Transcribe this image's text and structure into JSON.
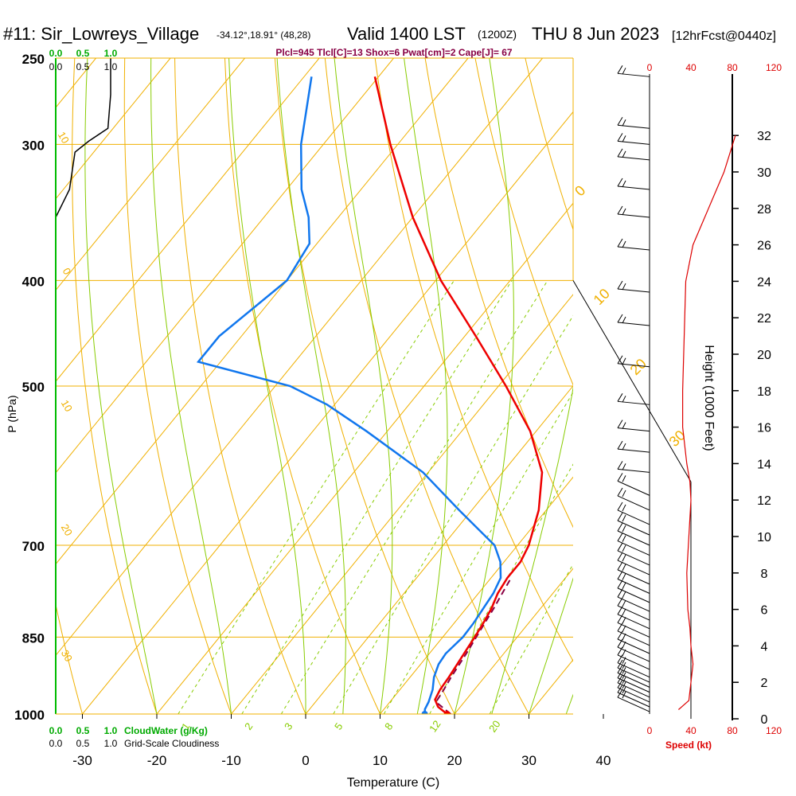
{
  "header": {
    "station": "#11: Sir_Lowreys_Village",
    "coords": "-34.12°,18.91° (48,28)",
    "valid": "Valid 1400 LST",
    "utc": "(1200Z)",
    "date": "THU 8 Jun 2023",
    "forecast": "[12hrFcst@0440z]"
  },
  "indices": "Plcl=945 Tlcl[C]=13 Shox=6 Pwat[cm]=2 Cape[J]= 67",
  "colors": {
    "isobar": "#f0b000",
    "dry_adiabat": "#f0b000",
    "moist_adiabat": "#88cc00",
    "mixing_ratio": "#88cc00",
    "temperature": "#ee0000",
    "dewpoint": "#1177ee",
    "parcel": "#880044",
    "cloud": "#00aa00",
    "wind_speed": "#dd0000",
    "label_text": "#880044"
  },
  "chart_data": {
    "type": "line",
    "title": "Skew-T Log-P sounding",
    "xlabel": "Temperature (C)",
    "ylabel": "P (hPa)",
    "right_ylabel": "Height (1000 Feet)",
    "x_ticks": [
      -30,
      -20,
      -10,
      0,
      10,
      20,
      30,
      40
    ],
    "p_ticks": [
      250,
      300,
      400,
      500,
      700,
      850,
      1000
    ],
    "p_tick_labels": [
      "250",
      "300",
      "400",
      "500",
      "700",
      "850",
      "1000"
    ],
    "height_ticks": [
      0,
      2,
      4,
      6,
      8,
      10,
      12,
      14,
      16,
      18,
      20,
      22,
      24,
      26,
      28,
      30,
      32
    ],
    "height_tick_labels": [
      "0",
      "2",
      "4",
      "6",
      "8",
      "10",
      "12",
      "14",
      "16",
      "18",
      "20",
      "22",
      "24",
      "26",
      "28",
      "30",
      "32"
    ],
    "dry_adiabat_labels": [
      "0",
      "10",
      "20",
      "30"
    ],
    "mixing_ratio_labels": [
      "1",
      "2",
      "3",
      "5",
      "8",
      "12",
      "20"
    ],
    "theta_e_side_labels": [
      "10",
      "0",
      "10",
      "20",
      "30"
    ],
    "series": [
      {
        "name": "Temperature",
        "pressure": [
          1000,
          985,
          970,
          950,
          925,
          900,
          875,
          850,
          825,
          800,
          775,
          750,
          725,
          700,
          650,
          600,
          550,
          500,
          450,
          400,
          350,
          300,
          260
        ],
        "temperature": [
          19.0,
          17.0,
          15.8,
          15.4,
          15.2,
          14.9,
          14.6,
          14.3,
          13.9,
          13.4,
          12.6,
          12.2,
          12.2,
          11.5,
          9.0,
          5.3,
          -0.8,
          -9.0,
          -18.5,
          -29.3,
          -40.0,
          -51.0,
          -60.5
        ]
      },
      {
        "name": "Dewpoint",
        "pressure": [
          1000,
          990,
          975,
          950,
          925,
          900,
          880,
          850,
          825,
          800,
          775,
          750,
          725,
          700,
          650,
          600,
          550,
          520,
          500,
          475,
          450,
          400,
          370,
          350,
          330,
          300,
          260
        ],
        "dewpoint": [
          16.0,
          15.5,
          15.2,
          14.4,
          13.2,
          12.4,
          12.2,
          12.7,
          12.6,
          12.3,
          12.0,
          11.3,
          9.5,
          6.9,
          -1.7,
          -10.7,
          -22.8,
          -31.0,
          -38.0,
          -53.0,
          -53.0,
          -50.0,
          -51.0,
          -54.0,
          -58.0,
          -63.0,
          -69.0
        ]
      },
      {
        "name": "Parcel",
        "pressure": [
          1000,
          975,
          950,
          925,
          900,
          875,
          850,
          825,
          800,
          775,
          750
        ],
        "temperature": [
          19.5,
          16.2,
          15.9,
          15.5,
          15.2,
          14.9,
          14.5,
          14.1,
          13.7,
          13.2,
          12.7
        ]
      }
    ],
    "wind_speed_profile": {
      "name": "Speed (kt)",
      "height_kft": [
        0.5,
        1,
        2,
        3,
        4,
        5,
        6,
        8,
        10,
        12,
        13,
        14,
        16,
        18,
        20,
        22,
        24,
        26,
        28,
        30,
        32
      ],
      "speed_kt": [
        28,
        38,
        40,
        42,
        40,
        39,
        37,
        36,
        38,
        40,
        39,
        36,
        32,
        32,
        33,
        34,
        35,
        42,
        57,
        72,
        83
      ],
      "ticks": [
        0,
        40,
        80,
        120
      ],
      "tick_labels": [
        "0",
        "40",
        "80",
        "120"
      ]
    },
    "wind_barbs": [
      {
        "p": 995,
        "kt": 10
      },
      {
        "p": 985,
        "kt": 10
      },
      {
        "p": 975,
        "kt": 10
      },
      {
        "p": 965,
        "kt": 10
      },
      {
        "p": 955,
        "kt": 10
      },
      {
        "p": 945,
        "kt": 10
      },
      {
        "p": 935,
        "kt": 10
      },
      {
        "p": 925,
        "kt": 10
      },
      {
        "p": 910,
        "kt": 10
      },
      {
        "p": 895,
        "kt": 10
      },
      {
        "p": 880,
        "kt": 10
      },
      {
        "p": 865,
        "kt": 10
      },
      {
        "p": 850,
        "kt": 10
      },
      {
        "p": 835,
        "kt": 10
      },
      {
        "p": 820,
        "kt": 10
      },
      {
        "p": 805,
        "kt": 10
      },
      {
        "p": 790,
        "kt": 10
      },
      {
        "p": 775,
        "kt": 10
      },
      {
        "p": 760,
        "kt": 10
      },
      {
        "p": 745,
        "kt": 10
      },
      {
        "p": 730,
        "kt": 10
      },
      {
        "p": 715,
        "kt": 10
      },
      {
        "p": 700,
        "kt": 10
      },
      {
        "p": 685,
        "kt": 10
      },
      {
        "p": 670,
        "kt": 10
      },
      {
        "p": 650,
        "kt": 10
      },
      {
        "p": 630,
        "kt": 10
      },
      {
        "p": 600,
        "kt": 10
      },
      {
        "p": 575,
        "kt": 10
      },
      {
        "p": 550,
        "kt": 10
      },
      {
        "p": 520,
        "kt": 10
      },
      {
        "p": 480,
        "kt": 10
      },
      {
        "p": 440,
        "kt": 10
      },
      {
        "p": 410,
        "kt": 10
      },
      {
        "p": 375,
        "kt": 10
      },
      {
        "p": 350,
        "kt": 10
      },
      {
        "p": 330,
        "kt": 10
      },
      {
        "p": 310,
        "kt": 10
      },
      {
        "p": 300,
        "kt": 10
      },
      {
        "p": 290,
        "kt": 10
      },
      {
        "p": 260,
        "kt": 10
      }
    ],
    "cloud_water": {
      "label": "CloudWater (g/Kg)",
      "ticks": [
        "0.0",
        "0.5",
        "1.0"
      ],
      "pressure": [
        250,
        270,
        290,
        298,
        305,
        330,
        350
      ],
      "value": [
        1.0,
        1.0,
        0.95,
        0.6,
        0.35,
        0.25,
        0.0
      ]
    },
    "cloudiness": {
      "label": "Grid-Scale Cloudiness",
      "ticks": [
        "0.0",
        "0.5",
        "1.0"
      ]
    },
    "speed_label": "Speed (kt)"
  }
}
